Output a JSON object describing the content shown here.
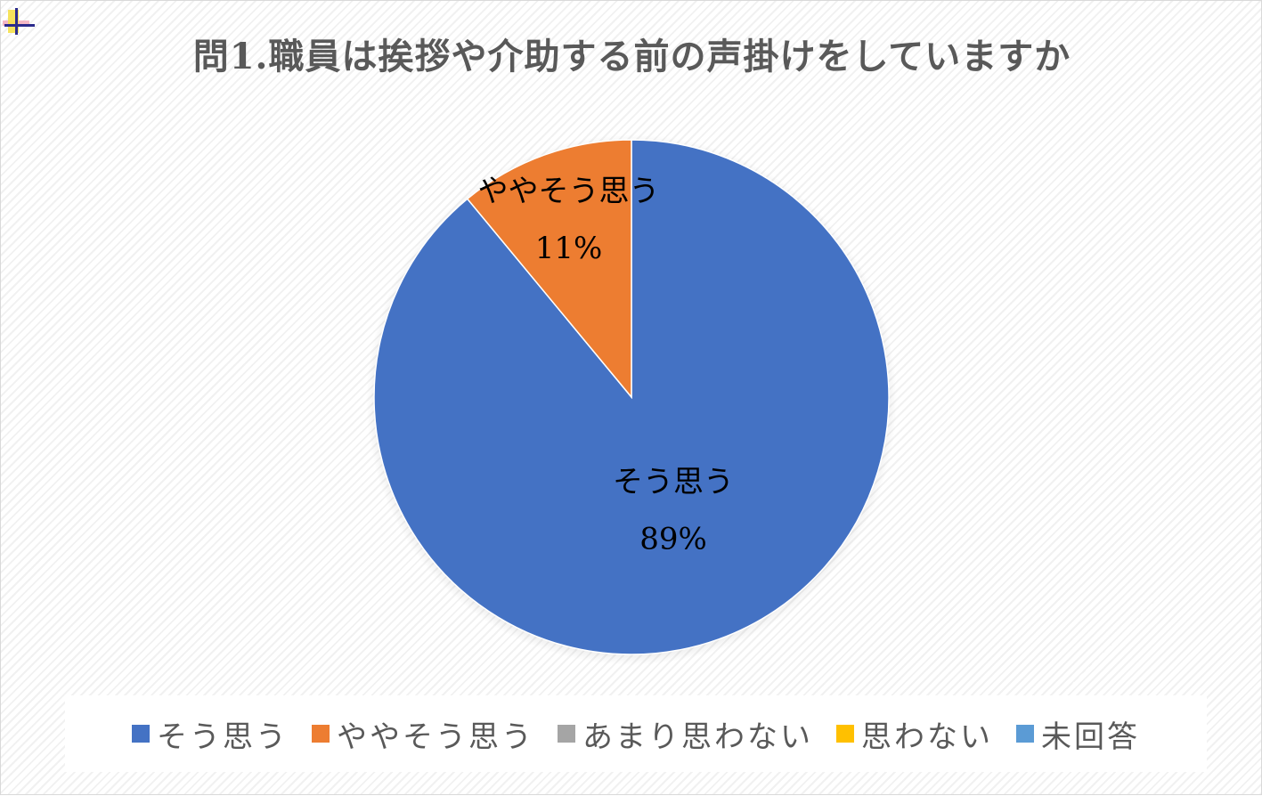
{
  "chart_data": {
    "type": "pie",
    "title": "問1.職員は挨拶や介助する前の声掛けをしていますか",
    "categories": [
      "そう思う",
      "ややそう思う",
      "あまり思わない",
      "思わない",
      "未回答"
    ],
    "values": [
      89,
      11,
      0,
      0,
      0
    ],
    "data_labels": [
      {
        "category": "そう思う",
        "percent": "89%"
      },
      {
        "category": "ややそう思う",
        "percent": "11%"
      }
    ],
    "colors": [
      "#4472C4",
      "#ED7D31",
      "#A5A5A5",
      "#FFC000",
      "#5B9BD5"
    ],
    "legend_position": "bottom",
    "legend": [
      "そう思う",
      "ややそう思う",
      "あまり思わない",
      "思わない",
      "未回答"
    ]
  }
}
